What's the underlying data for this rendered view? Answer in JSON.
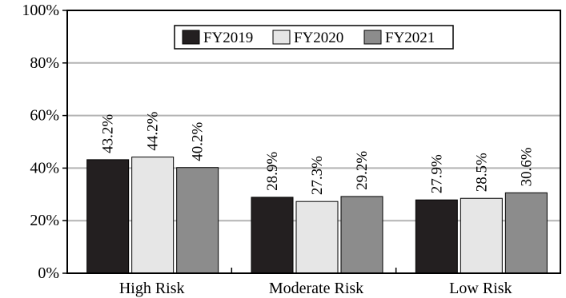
{
  "chart_data": {
    "type": "bar",
    "categories": [
      "High Risk",
      "Moderate Risk",
      "Low Risk"
    ],
    "series": [
      {
        "name": "FY2019",
        "values": [
          43.2,
          28.9,
          27.9
        ],
        "color": "#231f20"
      },
      {
        "name": "FY2020",
        "values": [
          44.2,
          27.3,
          28.5
        ],
        "color": "#e6e6e6"
      },
      {
        "name": "FY2021",
        "values": [
          40.2,
          29.2,
          30.6
        ],
        "color": "#8c8c8c"
      }
    ],
    "data_labels": [
      [
        "43.2%",
        "28.9%",
        "27.9%"
      ],
      [
        "44.2%",
        "27.3%",
        "28.5%"
      ],
      [
        "40.2%",
        "29.2%",
        "30.6%"
      ]
    ],
    "ylim": [
      0,
      100
    ],
    "yticks": [
      0,
      20,
      40,
      60,
      80,
      100
    ],
    "ytick_labels": [
      "0%",
      "20%",
      "40%",
      "60%",
      "80%",
      "100%"
    ],
    "grid": true,
    "legend_position": "top-center",
    "xlabel": "",
    "ylabel": "",
    "title": ""
  }
}
